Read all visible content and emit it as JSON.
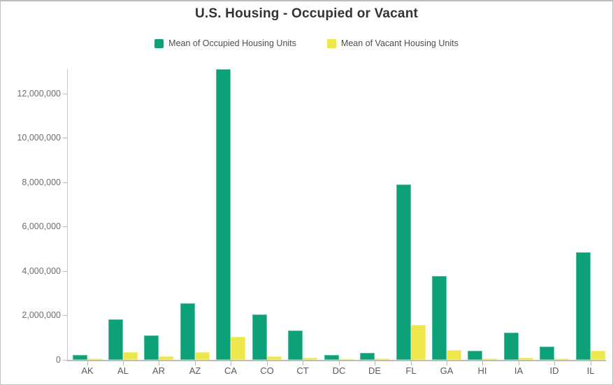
{
  "chart": {
    "title": "U.S. Housing - Occupied or Vacant",
    "legend": [
      {
        "label": "Mean of Occupied Housing Units",
        "color": "#0da17a"
      },
      {
        "label": "Mean of Vacant Housing Units",
        "color": "#ede74b"
      }
    ]
  },
  "chart_data": {
    "type": "bar",
    "title": "U.S. Housing - Occupied or Vacant",
    "categories": [
      "AK",
      "AL",
      "AR",
      "AZ",
      "CA",
      "CO",
      "CT",
      "DC",
      "DE",
      "FL",
      "GA",
      "HI",
      "IA",
      "ID",
      "IL"
    ],
    "series": [
      {
        "name": "Mean of Occupied Housing Units",
        "color": "#0da17a",
        "values": [
          220000,
          1830000,
          1090000,
          2560000,
          13100000,
          2060000,
          1320000,
          230000,
          310000,
          7900000,
          3770000,
          410000,
          1220000,
          590000,
          4850000
        ]
      },
      {
        "name": "Mean of Vacant Housing Units",
        "color": "#ede74b",
        "values": [
          70000,
          350000,
          150000,
          340000,
          1040000,
          170000,
          100000,
          40000,
          70000,
          1570000,
          430000,
          60000,
          80000,
          50000,
          410000
        ]
      }
    ],
    "xlabel": "",
    "ylabel": "",
    "ylim": [
      0,
      13100000
    ],
    "y_ticks": [
      0,
      2000000,
      4000000,
      6000000,
      8000000,
      10000000,
      12000000
    ],
    "y_tick_labels": [
      "0",
      "2,000,000",
      "4,000,000",
      "6,000,000",
      "8,000,000",
      "10,000,000",
      "12,000,000"
    ],
    "grid": false,
    "legend_position": "top"
  }
}
